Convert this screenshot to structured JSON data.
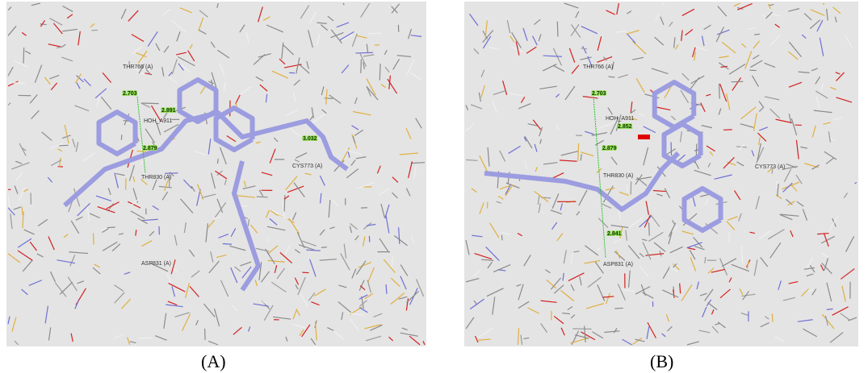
{
  "panels": [
    {
      "caption": "(A)",
      "residues": [
        "THR766 (A)",
        "HOH_A911",
        "THR830 (A)",
        "CYS773 (A)",
        "ASP831 (A)"
      ],
      "distances": [
        "2.703",
        "2.891",
        "2.879",
        "3.032"
      ]
    },
    {
      "caption": "(B)",
      "residues": [
        "THR766 (A)",
        "HOH_A911",
        "THR830 (A)",
        "CYS773 (A)",
        "ASP831 (A)"
      ],
      "distances": [
        "2.703",
        "2.852",
        "2.879",
        "2.841"
      ]
    }
  ]
}
